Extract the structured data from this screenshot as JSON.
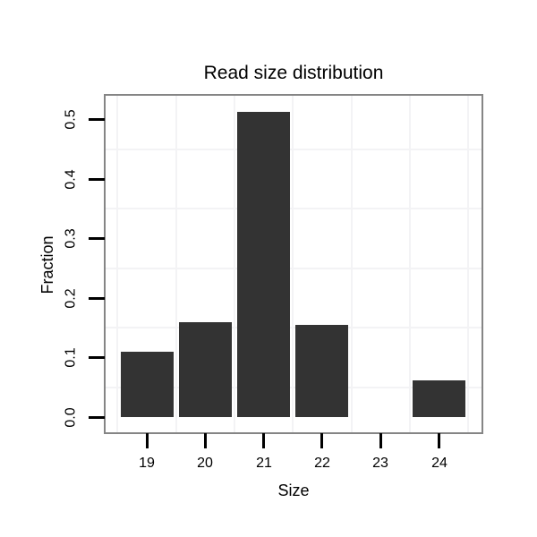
{
  "chart_data": {
    "type": "bar",
    "title": "Read size distribution",
    "xlabel": "Size",
    "ylabel": "Fraction",
    "categories": [
      "19",
      "20",
      "21",
      "22",
      "23",
      "24"
    ],
    "values": [
      0.11,
      0.16,
      0.513,
      0.155,
      0,
      0.062
    ],
    "y_tick_labels": [
      "0.0",
      "0.1",
      "0.2",
      "0.3",
      "0.4",
      "0.5"
    ],
    "y_tick_values": [
      0,
      0.1,
      0.2,
      0.3,
      0.4,
      0.5
    ],
    "ylim": [
      -0.026,
      0.539
    ],
    "grid": {
      "style": "faint minor gridlines offset half a step from ticks, both axes",
      "minor_y_step": 0.05,
      "legend_position": "none"
    },
    "colors": {
      "bar": "#333333",
      "panel_border": "#858585",
      "gridline": "#f3f3f5",
      "tick": "#000000",
      "text": "#000000",
      "background": "#ffffff"
    }
  }
}
